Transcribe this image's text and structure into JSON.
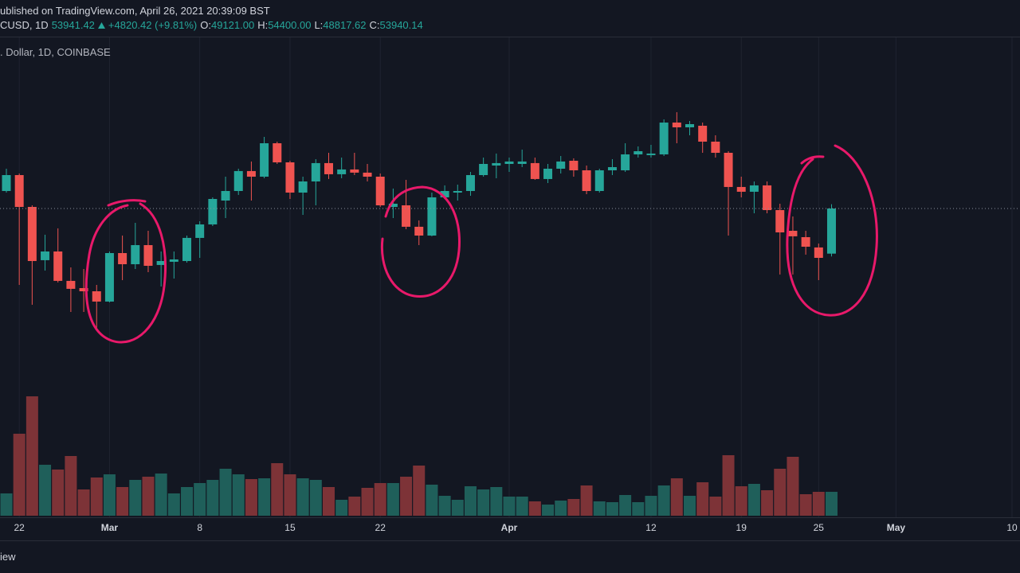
{
  "header": {
    "published": "ublished on TradingView.com, April 26, 2021 20:39:09 BST",
    "symbol": "CUSD, 1D",
    "last": "53941.42",
    "change": "+4820.42 (+9.81%)",
    "ohlc": [
      {
        "label": "O:",
        "value": "49121.00"
      },
      {
        "label": "H:",
        "value": "54400.00"
      },
      {
        "label": "L:",
        "value": "48817.62"
      },
      {
        "label": "C:",
        "value": "53940.14"
      }
    ],
    "pane_legend": ". Dollar, 1D, COINBASE"
  },
  "footer": {
    "text": "iew"
  },
  "chart_data": {
    "type": "candlestick",
    "x": [
      "2021-02-21",
      "2021-02-22",
      "2021-02-23",
      "2021-02-24",
      "2021-02-25",
      "2021-02-26",
      "2021-02-27",
      "2021-02-28",
      "2021-03-01",
      "2021-03-02",
      "2021-03-03",
      "2021-03-04",
      "2021-03-05",
      "2021-03-06",
      "2021-03-07",
      "2021-03-08",
      "2021-03-09",
      "2021-03-10",
      "2021-03-11",
      "2021-03-12",
      "2021-03-13",
      "2021-03-14",
      "2021-03-15",
      "2021-03-16",
      "2021-03-17",
      "2021-03-18",
      "2021-03-19",
      "2021-03-20",
      "2021-03-21",
      "2021-03-22",
      "2021-03-23",
      "2021-03-24",
      "2021-03-25",
      "2021-03-26",
      "2021-03-27",
      "2021-03-28",
      "2021-03-29",
      "2021-03-30",
      "2021-03-31",
      "2021-04-01",
      "2021-04-02",
      "2021-04-03",
      "2021-04-04",
      "2021-04-05",
      "2021-04-06",
      "2021-04-07",
      "2021-04-08",
      "2021-04-09",
      "2021-04-10",
      "2021-04-11",
      "2021-04-12",
      "2021-04-13",
      "2021-04-14",
      "2021-04-15",
      "2021-04-16",
      "2021-04-17",
      "2021-04-18",
      "2021-04-19",
      "2021-04-20",
      "2021-04-21",
      "2021-04-22",
      "2021-04-23",
      "2021-04-24",
      "2021-04-25",
      "2021-04-26"
    ],
    "open": [
      55810,
      57510,
      54110,
      48420,
      49350,
      46210,
      45440,
      45100,
      44000,
      49180,
      47990,
      50030,
      47910,
      48250,
      48330,
      50800,
      52240,
      54790,
      55810,
      57940,
      57340,
      60910,
      58870,
      55640,
      56830,
      58790,
      57600,
      58110,
      57770,
      57340,
      54110,
      54280,
      51990,
      51050,
      55130,
      55640,
      55810,
      57510,
      58530,
      58700,
      58700,
      58790,
      57090,
      58190,
      59040,
      58020,
      55810,
      58020,
      58020,
      59720,
      59640,
      59720,
      63120,
      62610,
      62780,
      61080,
      59890,
      56240,
      55730,
      56410,
      53770,
      51560,
      50880,
      49780,
      49121
    ],
    "high": [
      58190,
      57680,
      54280,
      51140,
      51820,
      47650,
      47480,
      45780,
      49350,
      51050,
      52410,
      51560,
      49350,
      49350,
      51050,
      52580,
      55130,
      57340,
      58190,
      58960,
      61590,
      61080,
      59040,
      57340,
      59210,
      59890,
      59380,
      59890,
      58700,
      57680,
      56070,
      57000,
      52670,
      55640,
      56410,
      56490,
      57850,
      59380,
      59810,
      59380,
      60230,
      59380,
      58700,
      59550,
      59300,
      58530,
      58190,
      59210,
      60910,
      60570,
      60740,
      63460,
      64230,
      63290,
      63120,
      61760,
      60060,
      57340,
      56830,
      56830,
      54450,
      53090,
      51560,
      50200,
      54400
    ],
    "low": [
      55640,
      45780,
      43660,
      47310,
      46040,
      42890,
      42890,
      41190,
      43910,
      46290,
      47480,
      47140,
      45610,
      46460,
      48160,
      48670,
      52070,
      52920,
      55390,
      54790,
      57170,
      58700,
      54960,
      53260,
      54280,
      57090,
      57170,
      57510,
      56830,
      54110,
      52920,
      51730,
      50030,
      50970,
      54960,
      54790,
      55300,
      57340,
      57170,
      57850,
      58360,
      57000,
      56660,
      57680,
      57340,
      55470,
      55640,
      57510,
      57850,
      59380,
      59380,
      59550,
      60910,
      61760,
      59890,
      59380,
      51050,
      55130,
      53430,
      53430,
      46890,
      46890,
      49010,
      46290,
      48817.62
    ],
    "close": [
      57510,
      54110,
      48330,
      49350,
      46210,
      45360,
      45100,
      44000,
      49180,
      47990,
      50030,
      47820,
      48330,
      48500,
      50800,
      52240,
      54960,
      55810,
      57940,
      57340,
      60910,
      58870,
      55640,
      56830,
      58790,
      57600,
      58110,
      57770,
      57340,
      54280,
      54450,
      51990,
      51050,
      55130,
      55810,
      55810,
      57510,
      58700,
      58790,
      58960,
      58960,
      57090,
      58190,
      58960,
      58020,
      55810,
      58020,
      58360,
      59720,
      60060,
      59810,
      63120,
      62610,
      62950,
      61080,
      59890,
      56240,
      55730,
      56410,
      53770,
      51390,
      50970,
      49860,
      48670,
      53940.14
    ],
    "volume": [
      11200,
      41200,
      60000,
      25600,
      23200,
      30000,
      13200,
      19200,
      20800,
      14400,
      18000,
      19600,
      21200,
      11200,
      14400,
      16400,
      18000,
      23600,
      20800,
      18400,
      18800,
      26400,
      20800,
      18800,
      18000,
      14400,
      8000,
      9600,
      14000,
      16400,
      16400,
      19600,
      25200,
      15600,
      10000,
      8000,
      14800,
      13200,
      14400,
      9600,
      9600,
      7200,
      5600,
      7600,
      8400,
      15200,
      7200,
      6800,
      10400,
      6800,
      10000,
      15200,
      18800,
      10000,
      16800,
      9600,
      30400,
      14800,
      16000,
      12800,
      23600,
      29600,
      10800,
      12000,
      12000
    ],
    "up_color": "#26a69a",
    "down_color": "#ef5350",
    "volume_up_color": "#1f5f5a",
    "volume_down_color": "#7d3337",
    "xlim": [
      "2021-02-21",
      "2021-05-10"
    ],
    "xticks": [
      {
        "value": "2021-02-22",
        "label": "22"
      },
      {
        "value": "2021-03-01",
        "label": "Mar"
      },
      {
        "value": "2021-03-08",
        "label": "8"
      },
      {
        "value": "2021-03-15",
        "label": "15"
      },
      {
        "value": "2021-03-22",
        "label": "22"
      },
      {
        "value": "2021-04-01",
        "label": "Apr"
      },
      {
        "value": "2021-04-12",
        "label": "12"
      },
      {
        "value": "2021-04-19",
        "label": "19"
      },
      {
        "value": "2021-04-25",
        "label": "25"
      },
      {
        "value": "2021-05-01",
        "label": "May"
      },
      {
        "value": "2021-05-10",
        "label": "10"
      }
    ],
    "ylim": [
      35410,
      72130
    ],
    "vlim": [
      0,
      64000
    ],
    "grid": true
  }
}
